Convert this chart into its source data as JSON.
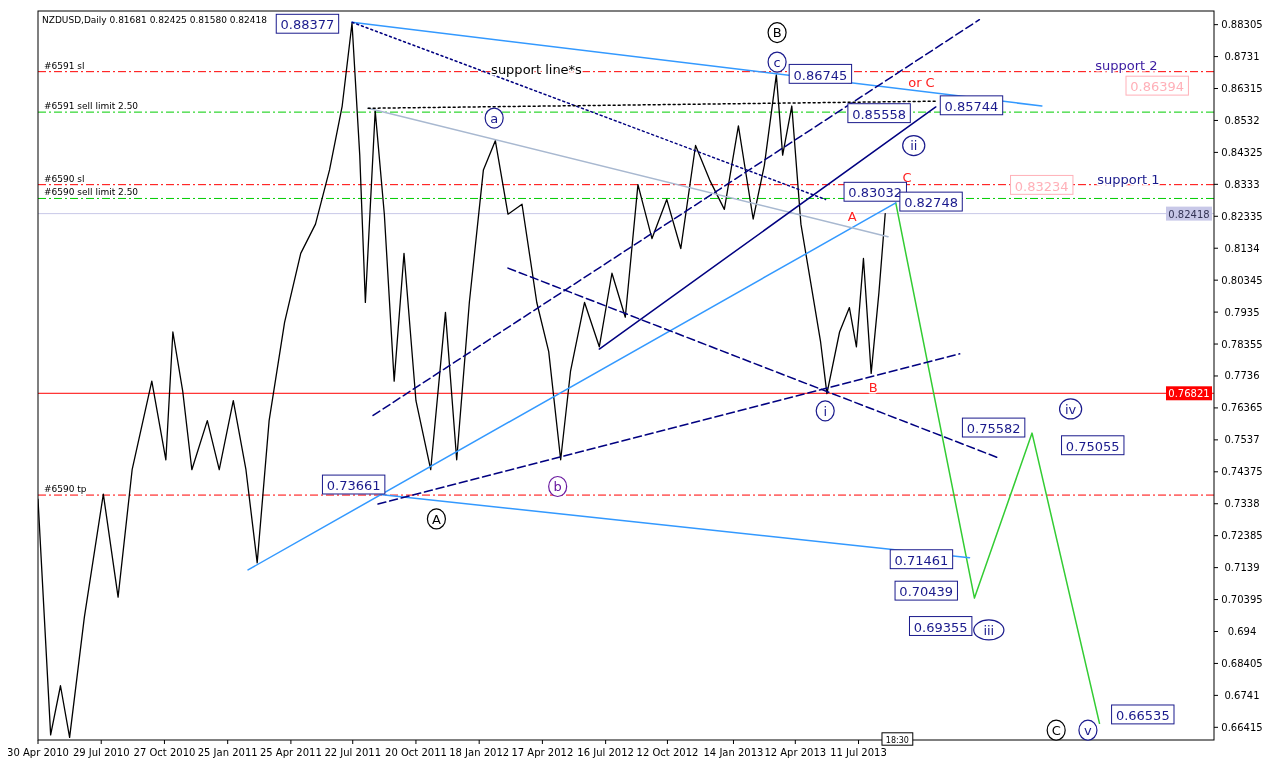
{
  "chart_data": {
    "type": "line",
    "title": "NZDUSD,Daily  0.81681 0.82425 0.81580 0.82418",
    "xlim": [
      "2010-04-30",
      "2014-11-29"
    ],
    "ylim": [
      0.6602,
      0.8873
    ],
    "xticks": [
      {
        "value": "2010-04-30",
        "label": "30 Apr 2010"
      },
      {
        "value": "2010-07-29",
        "label": "29 Jul 2010"
      },
      {
        "value": "2010-10-27",
        "label": "27 Oct 2010"
      },
      {
        "value": "2011-01-25",
        "label": "25 Jan 2011"
      },
      {
        "value": "2011-04-25",
        "label": "25 Apr 2011"
      },
      {
        "value": "2011-07-22",
        "label": "22 Jul 2011"
      },
      {
        "value": "2011-10-20",
        "label": "20 Oct 2011"
      },
      {
        "value": "2012-01-18",
        "label": "18 Jan 2012"
      },
      {
        "value": "2012-04-17",
        "label": "17 Apr 2012"
      },
      {
        "value": "2012-07-16",
        "label": "16 Jul 2012"
      },
      {
        "value": "2012-10-12",
        "label": "12 Oct 2012"
      },
      {
        "value": "2013-01-14",
        "label": "14 Jan 2013"
      },
      {
        "value": "2013-04-12",
        "label": "12 Apr 2013"
      },
      {
        "value": "2013-07-11",
        "label": "11 Jul 2013"
      }
    ],
    "yticks": [
      0.66415,
      0.6741,
      0.68405,
      0.694,
      0.70395,
      0.7139,
      0.72385,
      0.7338,
      0.74375,
      0.7537,
      0.76365,
      0.7736,
      0.78355,
      0.7935,
      0.80345,
      0.8134,
      0.82335,
      0.8333,
      0.84325,
      0.8532,
      0.86315,
      0.8731,
      0.88305
    ],
    "ref_lines": [
      {
        "axis": "y",
        "value": 0.8684,
        "label": "#6591 sl",
        "color": "#ff0000",
        "line_style": "dashed"
      },
      {
        "axis": "y",
        "value": 0.8558,
        "label": "#6591 sell limit 2.50",
        "color": "#00cc00",
        "line_style": "dashed"
      },
      {
        "axis": "y",
        "value": 0.8332,
        "label": "#6590 sl",
        "color": "#ff0000",
        "line_style": "dashed"
      },
      {
        "axis": "y",
        "value": 0.8289,
        "label": "#6590 sell limit 2.50",
        "color": "#00cc00",
        "line_style": "dashed"
      },
      {
        "axis": "y",
        "value": 0.82418,
        "label": "0.82418",
        "color": "#c8c8e8",
        "line_style": "solid"
      },
      {
        "axis": "y",
        "value": 0.7365,
        "label": "#6590 tp",
        "color": "#ff0000",
        "line_style": "dashed"
      },
      {
        "axis": "y",
        "value": 0.76821,
        "label": "0.76821",
        "color": "#ff0000",
        "line_style": "solid"
      }
    ],
    "series": [
      {
        "color": "#000000",
        "line_style": "solid",
        "x": [
          "2010-04-30",
          "2010-05-18",
          "2010-06-01",
          "2010-06-14",
          "2010-07-05",
          "2010-08-01",
          "2010-08-22",
          "2010-09-11",
          "2010-10-09",
          "2010-10-29",
          "2010-11-08",
          "2010-11-22",
          "2010-12-05",
          "2010-12-27",
          "2011-01-13",
          "2011-02-02",
          "2011-02-20",
          "2011-03-08",
          "2011-03-25",
          "2011-04-16",
          "2011-05-09",
          "2011-05-30",
          "2011-06-19",
          "2011-07-07",
          "2011-07-21",
          "2011-08-01",
          "2011-08-09",
          "2011-08-23",
          "2011-09-05",
          "2011-09-19",
          "2011-10-03",
          "2011-10-20",
          "2011-11-10",
          "2011-12-01",
          "2011-12-17",
          "2012-01-04",
          "2012-01-24",
          "2012-02-10",
          "2012-02-28",
          "2012-03-19",
          "2012-04-09",
          "2012-04-26",
          "2012-05-13",
          "2012-05-27",
          "2012-06-16",
          "2012-07-07",
          "2012-07-25",
          "2012-08-13",
          "2012-08-31",
          "2012-09-20",
          "2012-10-11",
          "2012-10-31",
          "2012-11-21",
          "2012-12-11",
          "2013-01-01",
          "2013-01-21",
          "2013-02-11",
          "2013-02-27",
          "2013-03-16",
          "2013-03-25",
          "2013-04-07",
          "2013-04-20",
          "2013-05-04",
          "2013-05-18",
          "2013-05-27",
          "2013-06-14",
          "2013-06-28",
          "2013-07-08",
          "2013-07-18",
          "2013-07-29",
          "2013-08-09",
          "2013-08-18"
        ],
        "values": [
          0.7352,
          0.6618,
          0.6771,
          0.661,
          0.6985,
          0.7368,
          0.7047,
          0.7444,
          0.772,
          0.7475,
          0.7873,
          0.7689,
          0.7444,
          0.7597,
          0.7444,
          0.7659,
          0.7444,
          0.7154,
          0.7597,
          0.7903,
          0.8118,
          0.8209,
          0.8378,
          0.8577,
          0.8835,
          0.8424,
          0.7965,
          0.8562,
          0.824,
          0.772,
          0.8118,
          0.7659,
          0.7444,
          0.7934,
          0.7475,
          0.7965,
          0.8378,
          0.8469,
          0.824,
          0.8271,
          0.7965,
          0.7812,
          0.7475,
          0.775,
          0.7965,
          0.7827,
          0.8056,
          0.7919,
          0.8332,
          0.8164,
          0.8286,
          0.8133,
          0.8454,
          0.8347,
          0.8255,
          0.8515,
          0.8225,
          0.8393,
          0.8674,
          0.8424,
          0.8577,
          0.8209,
          0.8026,
          0.7842,
          0.7681,
          0.7873,
          0.7949,
          0.7827,
          0.8102,
          0.7744,
          0.7995,
          0.8242
        ]
      },
      {
        "color": "#33cc33",
        "line_style": "solid",
        "x": [
          "2013-09-02",
          "2013-12-23",
          "2014-03-15",
          "2014-06-19"
        ],
        "values": [
          0.8275,
          0.7044,
          0.7558,
          0.6654
        ]
      },
      {
        "color": "#3399ff",
        "line_style": "solid",
        "x": [
          "2011-07-21",
          "2014-03-29"
        ],
        "values": [
          0.8838,
          0.8577
        ]
      },
      {
        "color": "#3399ff",
        "line_style": "solid",
        "x": [
          "2011-02-23",
          "2013-09-02"
        ],
        "values": [
          0.7132,
          0.8275
        ]
      },
      {
        "color": "#3399ff",
        "line_style": "solid",
        "x": [
          "2011-09-02",
          "2013-12-16"
        ],
        "values": [
          0.7366,
          0.717
        ]
      },
      {
        "color": "#a8b8d0",
        "line_style": "solid",
        "x": [
          "2011-08-13",
          "2013-08-22"
        ],
        "values": [
          0.857,
          0.817
        ]
      },
      {
        "color": "#000080",
        "line_style": "solid",
        "x": [
          "2012-07-07",
          "2013-10-29"
        ],
        "values": [
          0.782,
          0.8574
        ]
      },
      {
        "color": "#000080",
        "line_style": "dashed",
        "x": [
          "2011-08-20",
          "2013-12-30"
        ],
        "values": [
          0.7613,
          0.8846
        ]
      },
      {
        "color": "#000080",
        "line_style": "dashed",
        "x": [
          "2012-02-28",
          "2014-01-26"
        ],
        "values": [
          0.8072,
          0.7481
        ]
      },
      {
        "color": "#000080",
        "line_style": "dashed",
        "x": [
          "2011-08-27",
          "2013-12-02"
        ],
        "values": [
          0.7337,
          0.7805
        ]
      },
      {
        "color": "#000080",
        "line_style": "dotted",
        "x": [
          "2011-07-21",
          "2013-05-25"
        ],
        "values": [
          0.8838,
          0.8286
        ]
      },
      {
        "color": "#000000",
        "line_style": "dotted",
        "x": [
          "2011-08-13",
          "2013-10-29"
        ],
        "values": [
          0.857,
          0.8592
        ]
      }
    ],
    "annotations": [
      "0.88377",
      "B",
      "c",
      "0.86745",
      "or C",
      "0.85558",
      "0.85744",
      "ii",
      "support 2",
      "0.86394",
      "C",
      "0.83234",
      "support 1",
      "0.83032",
      "0.82748",
      "A",
      "B",
      "i",
      "iv",
      "0.75582",
      "0.75055",
      "b",
      "0.73661",
      "A",
      "0.71461",
      "0.70439",
      "0.69355",
      "iii",
      "0.66535",
      "C",
      "v",
      "a",
      "support line*s",
      "18:30"
    ]
  }
}
